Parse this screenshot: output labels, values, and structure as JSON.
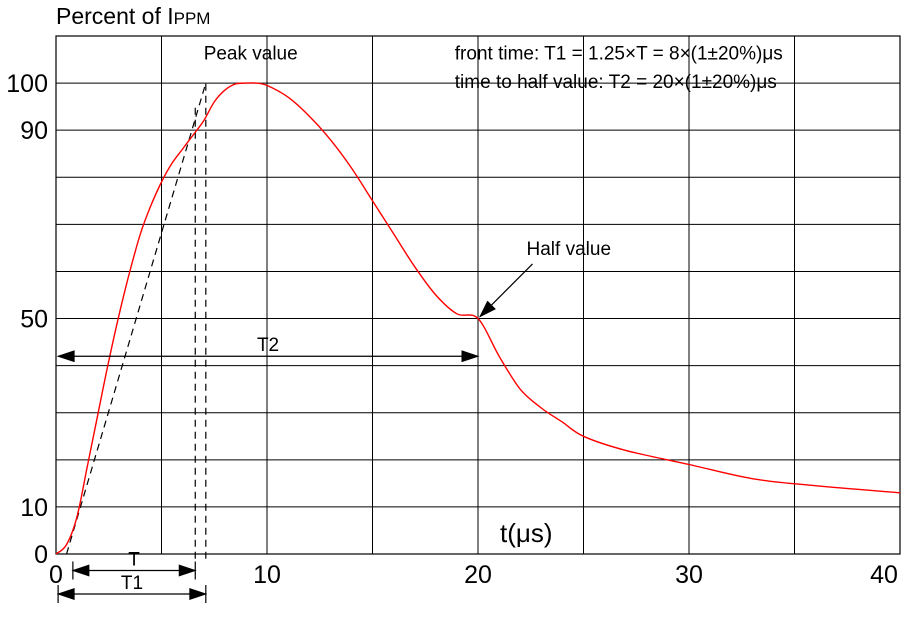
{
  "chart_data": {
    "type": "line",
    "title": "Percent of I",
    "title_subscript": "PPM",
    "xlabel": "t(μs)",
    "ylabel": "",
    "xlim": [
      0,
      40
    ],
    "ylim": [
      0,
      110
    ],
    "x_ticks": [
      {
        "value": 0,
        "label": "0"
      },
      {
        "value": 10,
        "label": "10"
      },
      {
        "value": 20,
        "label": "20"
      },
      {
        "value": 30,
        "label": "30"
      },
      {
        "value": 40,
        "label": "40"
      }
    ],
    "y_ticks": [
      {
        "value": 0,
        "label": "0"
      },
      {
        "value": 10,
        "label": "10"
      },
      {
        "value": 50,
        "label": "50"
      },
      {
        "value": 90,
        "label": "90"
      },
      {
        "value": 100,
        "label": "100"
      }
    ],
    "grid": true,
    "series": [
      {
        "color": "#ff0000",
        "x": [
          0,
          0.5,
          1,
          1.5,
          2,
          2.5,
          3,
          3.5,
          4,
          4.5,
          5,
          5.5,
          6,
          6.5,
          7,
          7.5,
          8,
          8.5,
          9,
          9.5,
          10,
          11,
          12,
          13,
          14,
          15,
          16,
          17,
          18,
          19,
          20,
          21,
          22,
          23,
          24,
          25,
          27,
          30,
          33,
          36,
          40
        ],
        "y": [
          0,
          2,
          8,
          19,
          30,
          41,
          51,
          60,
          68,
          74,
          79,
          83,
          86,
          89,
          92,
          96,
          98.5,
          99.8,
          100,
          100,
          99.5,
          97,
          93,
          88,
          82,
          75,
          68,
          61,
          55,
          51,
          50,
          42,
          35,
          31,
          28,
          25,
          22,
          19,
          16,
          14.5,
          13
        ]
      }
    ],
    "reference_lines": [
      {
        "kind": "front-line",
        "from": [
          0.5,
          0
        ],
        "to": [
          7.1,
          100
        ],
        "style": "dashed"
      },
      {
        "kind": "vertical",
        "x": 6.6,
        "y_from": -1,
        "y_to": 95,
        "style": "dashed"
      },
      {
        "kind": "vertical",
        "x": 7.1,
        "y_from": -1,
        "y_to": 100,
        "style": "dashed"
      }
    ],
    "dimensions": [
      {
        "label": "T",
        "from": 0.8,
        "to": 6.6,
        "y": -3.5
      },
      {
        "label": "T1",
        "from": 0.1,
        "to": 7.1,
        "y": -8.5
      },
      {
        "label": "T2",
        "from": 0.1,
        "to": 20,
        "y": 42
      }
    ],
    "annotations": [
      {
        "text": "Peak value",
        "x": 7.0,
        "y": 105
      },
      {
        "text": "Half value",
        "x": 22.3,
        "y": 63.5,
        "arrow_to": [
          20,
          50
        ]
      },
      {
        "text": "front time: T1 = 1.25×T = 8×(1±20%)μs",
        "x": 18.9,
        "y": 105
      },
      {
        "text": "time to half value: T2 = 20×(1±20%)μs",
        "x": 18.9,
        "y": 99
      }
    ]
  }
}
